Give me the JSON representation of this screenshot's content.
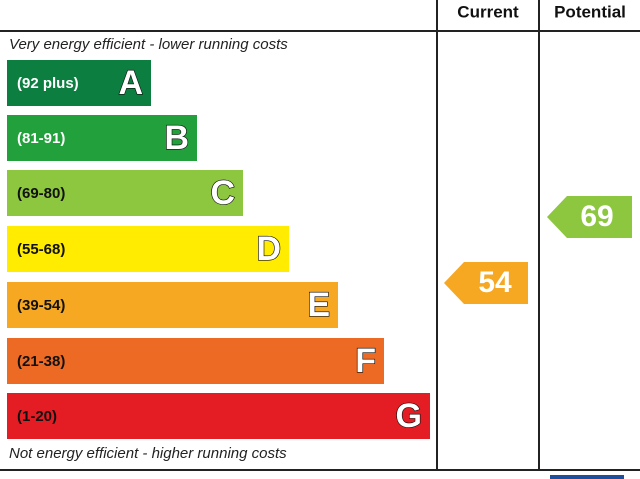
{
  "header": {
    "current": "Current",
    "potential": "Potential"
  },
  "top_note": "Very energy efficient - lower running costs",
  "bottom_note": "Not energy efficient - higher running costs",
  "bands": [
    {
      "range": "(92 plus)",
      "letter": "A",
      "color": "#0c7f40"
    },
    {
      "range": "(81-91)",
      "letter": "B",
      "color": "#21a03b"
    },
    {
      "range": "(69-80)",
      "letter": "C",
      "color": "#8dc63f"
    },
    {
      "range": "(55-68)",
      "letter": "D",
      "color": "#ffec00"
    },
    {
      "range": "(39-54)",
      "letter": "E",
      "color": "#f7a823"
    },
    {
      "range": "(21-38)",
      "letter": "F",
      "color": "#ec6a24"
    },
    {
      "range": "(1-20)",
      "letter": "G",
      "color": "#e31d23"
    }
  ],
  "current": {
    "value": 54,
    "color": "#f7a823"
  },
  "potential": {
    "value": 69,
    "color": "#8dc63f"
  }
}
